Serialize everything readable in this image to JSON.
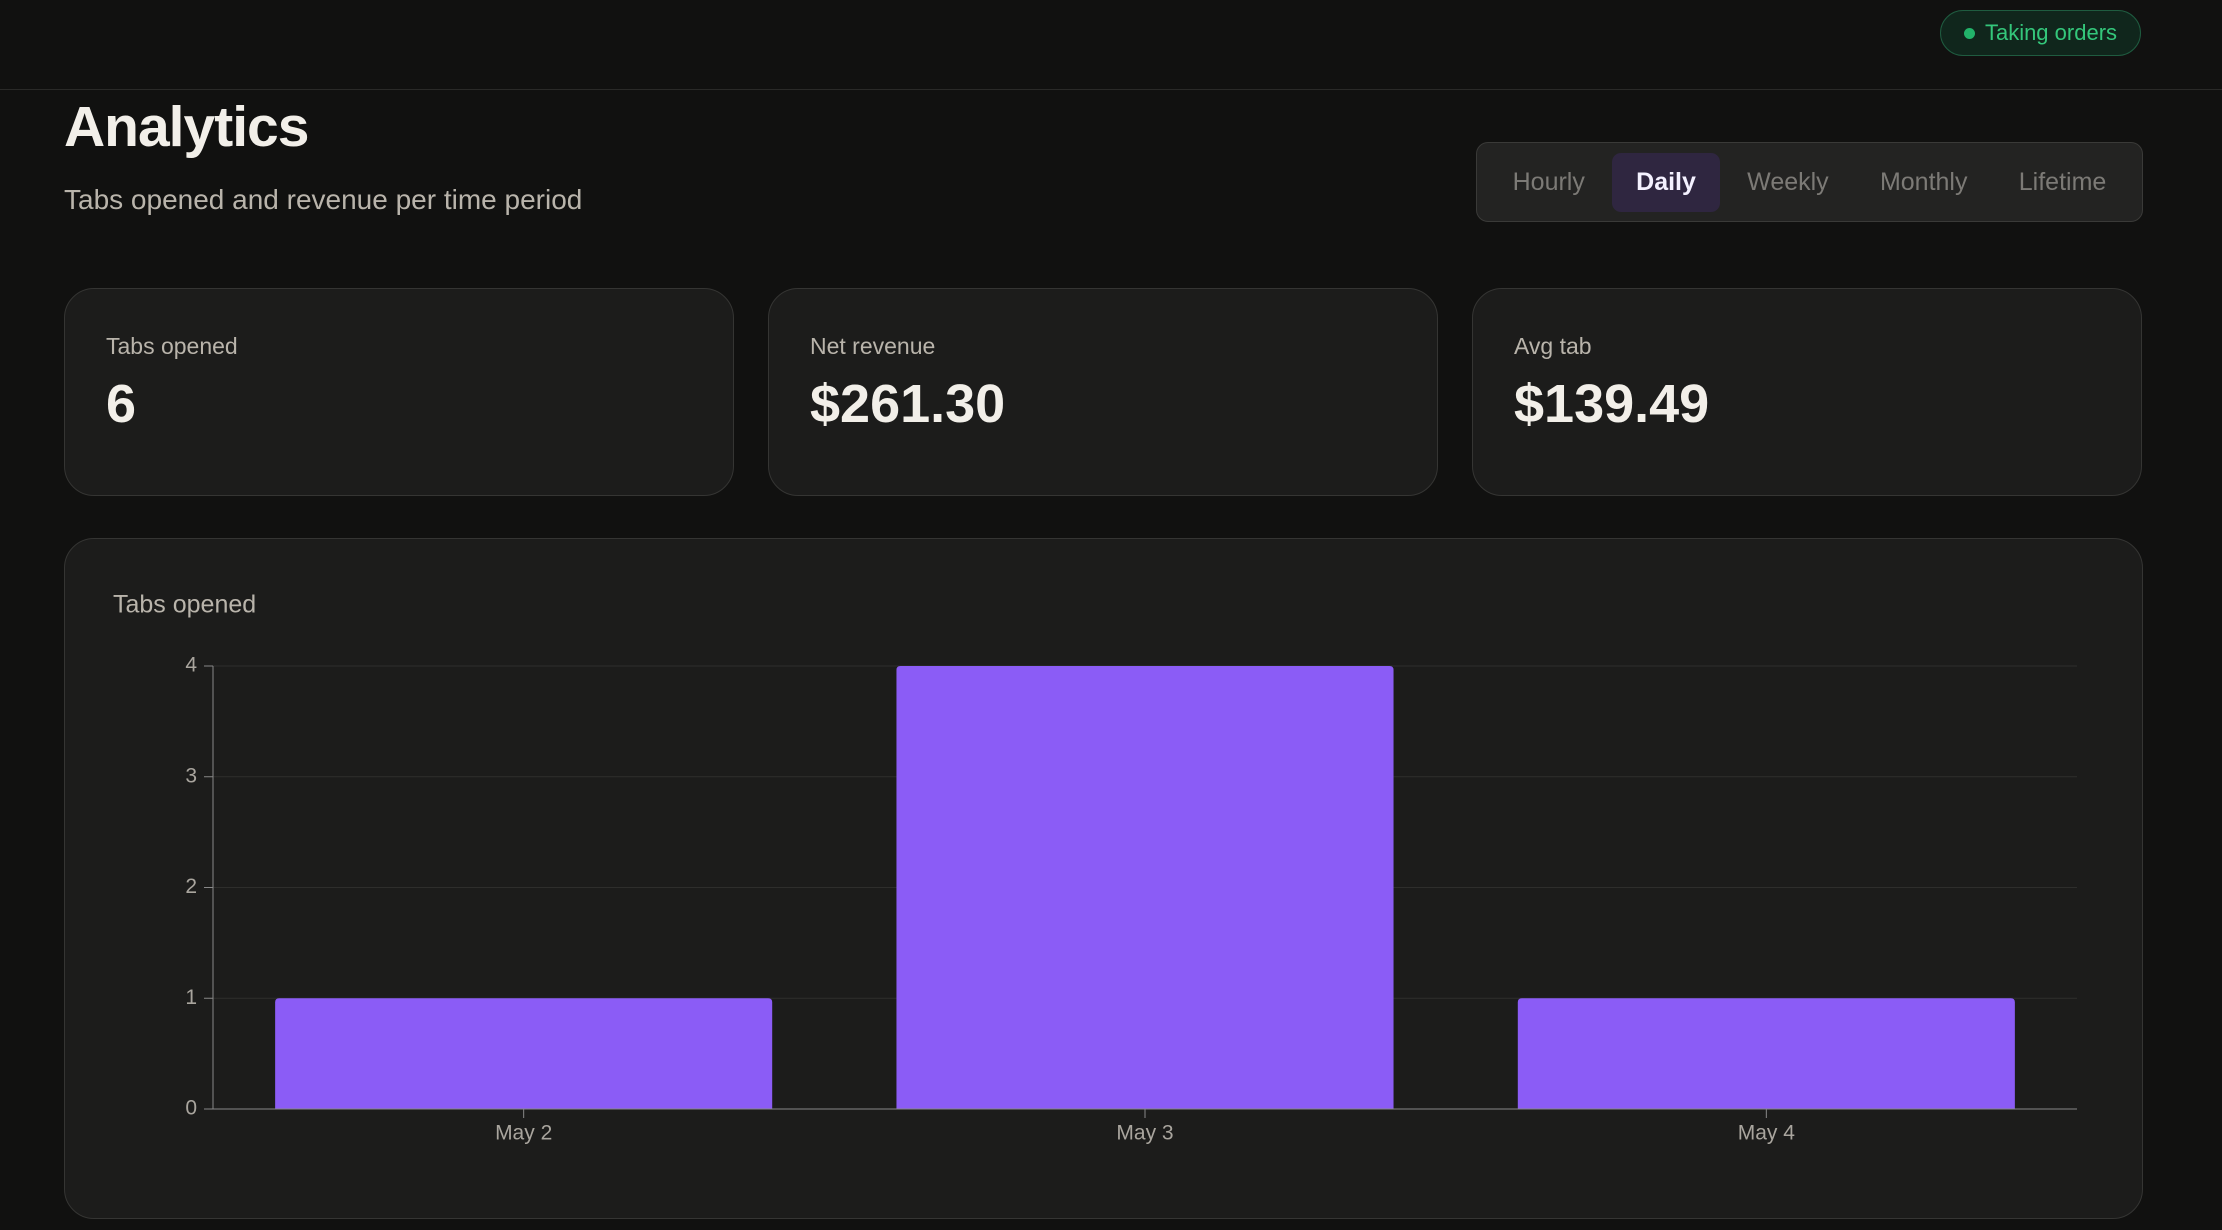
{
  "header": {
    "status": "Taking orders"
  },
  "title": "Analytics",
  "subtitle": "Tabs opened and revenue per time period",
  "tabs": [
    {
      "label": "Hourly",
      "active": false
    },
    {
      "label": "Daily",
      "active": true
    },
    {
      "label": "Weekly",
      "active": false
    },
    {
      "label": "Monthly",
      "active": false
    },
    {
      "label": "Lifetime",
      "active": false
    }
  ],
  "stats": [
    {
      "label": "Tabs opened",
      "value": "6"
    },
    {
      "label": "Net revenue",
      "value": "$261.30"
    },
    {
      "label": "Avg tab",
      "value": "$139.49"
    }
  ],
  "chart_data": {
    "type": "bar",
    "title": "Tabs opened",
    "categories": [
      "May 2",
      "May 3",
      "May 4"
    ],
    "values": [
      1,
      4,
      1
    ],
    "color": "#8b5cf6",
    "ylim": [
      0,
      4
    ],
    "yticks": [
      0,
      1,
      2,
      3,
      4
    ],
    "grid": true
  }
}
